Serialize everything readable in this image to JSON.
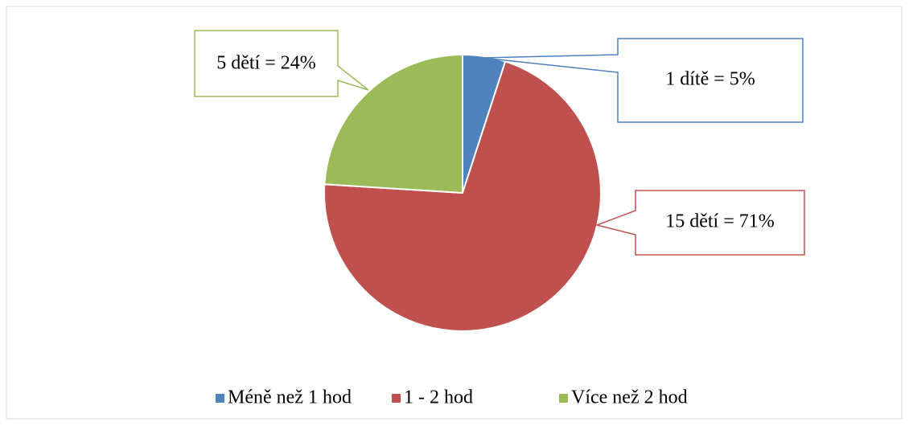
{
  "chart_data": {
    "type": "pie",
    "categories": [
      "Méně než 1 hod",
      "1 - 2 hod",
      "Více než 2 hod"
    ],
    "values": [
      5,
      71,
      24
    ],
    "value_labels": [
      "1 dítě = 5%",
      "15 dětí = 71%",
      "5 dětí = 24%"
    ],
    "colors": [
      "#4f81bd",
      "#c0504d",
      "#9bbb59"
    ],
    "legend": "bottom"
  }
}
